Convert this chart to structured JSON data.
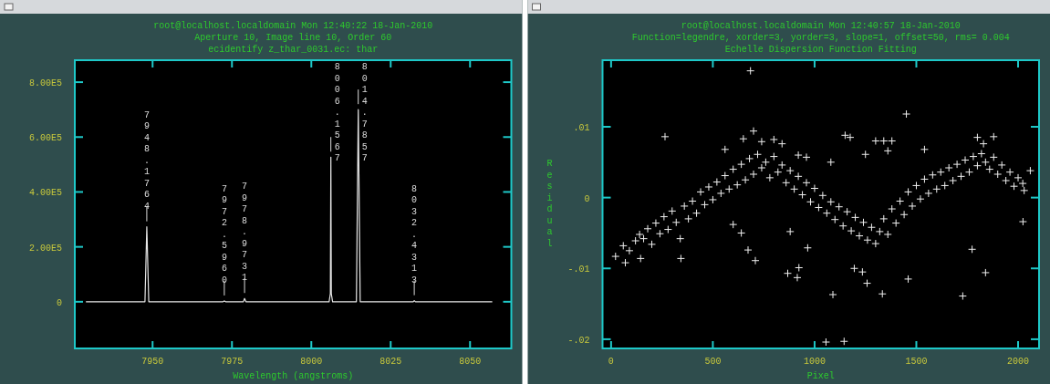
{
  "chart_data": [
    {
      "type": "line",
      "title": "root@localhost.localdomain Mon 12:40:22 18-Jan-2010",
      "subtitle": "Aperture 10, Image line 10, Order 60",
      "xlabel": "Wavelength (angstroms)",
      "color": "#e6e6e6",
      "x": [
        7929,
        7947.6,
        7948.18,
        7948.8,
        7972.2,
        7972.6,
        7973,
        7978.6,
        7978.97,
        7979.4,
        8005.6,
        8006.0,
        8006.16,
        8006.3,
        8006.7,
        8014.2,
        8014.79,
        8015.4,
        8032.1,
        8032.43,
        8032.8,
        8057
      ],
      "values": [
        0,
        0,
        273000,
        0,
        0,
        3000,
        0,
        0,
        12000,
        0,
        0,
        30000,
        527000,
        30000,
        0,
        0,
        700000,
        0,
        0,
        4000,
        0,
        0
      ],
      "xlim": [
        7925.5,
        8063
      ],
      "xticks": [
        7950,
        7975,
        8000,
        8025,
        8050
      ],
      "ylim": [
        -170000,
        880000
      ],
      "yticks": [
        0,
        {
          "value": 200000,
          "label": "2.00E5"
        },
        {
          "value": 400000,
          "label": "4.00E5"
        },
        {
          "value": 600000,
          "label": "6.00E5"
        },
        {
          "value": 800000,
          "label": "8.00E5"
        }
      ],
      "annotations": [
        "ecidentify z_thar_0031.ec: thar",
        {
          "text": "7948.1764",
          "x": 7948.1764,
          "y": 273000
        },
        {
          "text": "7972.5960",
          "x": 7972.596,
          "y": 3000
        },
        {
          "text": "7978.9731",
          "x": 7978.9731,
          "y": 12000
        },
        {
          "text": "8006.1567",
          "x": 8006.1567,
          "y": 527000
        },
        {
          "text": "8014.7857",
          "x": 8014.7857,
          "y": 700000
        },
        {
          "text": "8032.4313",
          "x": 8032.4313,
          "y": 4000
        }
      ]
    },
    {
      "type": "scatter",
      "title": "root@localhost.localdomain Mon 12:40:57 18-Jan-2010",
      "subtitle": "Function=legendre, xorder=3, yorder=3, slope=1, offset=50, rms= 0.004",
      "xlabel": "Pixel",
      "ylabel": "Residual",
      "color": "#f0f0f0",
      "marker": "cross",
      "annotations": [
        "Echelle Dispersion Function Fitting"
      ],
      "x": [
        60,
        90,
        120,
        140,
        160,
        180,
        200,
        220,
        240,
        260,
        280,
        300,
        320,
        340,
        360,
        380,
        400,
        420,
        440,
        460,
        480,
        500,
        520,
        540,
        560,
        580,
        600,
        620,
        640,
        660,
        680,
        700,
        720,
        740,
        760,
        780,
        800,
        820,
        840,
        860,
        880,
        900,
        920,
        940,
        960,
        980,
        1000,
        1020,
        1040,
        1060,
        1080,
        1100,
        1120,
        1140,
        1160,
        1180,
        1200,
        1220,
        1240,
        1260,
        1280,
        1300,
        1320,
        1340,
        1360,
        1380,
        1400,
        1420,
        1440,
        1460,
        1480,
        1500,
        1520,
        1540,
        1560,
        1580,
        1600,
        1620,
        1640,
        1660,
        1680,
        1700,
        1720,
        1740,
        1760,
        1780,
        1800,
        1820,
        1840,
        1860,
        1880,
        1900,
        1920,
        1940,
        1960,
        1980,
        2000,
        2030,
        2060,
        560,
        650,
        700,
        740,
        800,
        840,
        920,
        960,
        1080,
        1150,
        1175,
        1300,
        1340,
        1380,
        1360,
        1250,
        1540,
        1830,
        1880,
        1800,
        600,
        640,
        880,
        685,
        265,
        1451,
        1056,
        1145,
        1090,
        1333,
        1728,
        1460,
        1840,
        868,
        915,
        923,
        1258,
        1195,
        1235,
        22,
        70,
        145,
        343,
        709,
        673,
        966,
        1774,
        2024,
        2023
      ],
      "values": [
        -0.0068,
        -0.0075,
        -0.0061,
        -0.0052,
        -0.0058,
        -0.0044,
        -0.0066,
        -0.0036,
        -0.0051,
        -0.0027,
        -0.0045,
        -0.0019,
        -0.0035,
        -0.0058,
        -0.0012,
        -0.003,
        -0.0005,
        -0.0022,
        0.0008,
        -0.001,
        0.0015,
        -0.0003,
        0.0022,
        0.0006,
        0.0031,
        0.0012,
        0.004,
        0.0018,
        0.0047,
        0.0025,
        0.0055,
        0.0033,
        0.0061,
        0.0042,
        0.005,
        0.0028,
        0.0058,
        0.0036,
        0.0046,
        0.0021,
        0.0038,
        0.0012,
        0.003,
        0.0004,
        0.0021,
        -0.0006,
        0.0013,
        -0.0014,
        0.0003,
        -0.0022,
        -0.0006,
        -0.0031,
        -0.0013,
        -0.004,
        -0.002,
        -0.0047,
        -0.0028,
        -0.0054,
        -0.0035,
        -0.006,
        -0.0042,
        -0.0065,
        -0.0048,
        -0.003,
        -0.0052,
        -0.0016,
        -0.0036,
        -0.0005,
        -0.0024,
        0.0008,
        -0.0012,
        0.0017,
        -0.0002,
        0.0026,
        0.0006,
        0.0032,
        0.0012,
        0.0036,
        0.0017,
        0.0042,
        0.0024,
        0.0047,
        0.003,
        0.0053,
        0.0036,
        0.0058,
        0.0045,
        0.0062,
        0.005,
        0.004,
        0.0057,
        0.0033,
        0.0046,
        0.0024,
        0.0036,
        0.0016,
        0.0028,
        0.001,
        0.0038,
        0.0068,
        0.0083,
        0.0094,
        0.0079,
        0.0082,
        0.0076,
        0.006,
        0.0057,
        0.005,
        0.0088,
        0.0085,
        0.008,
        0.008,
        0.008,
        0.0066,
        0.0061,
        0.0068,
        0.0076,
        0.0086,
        0.0085,
        -0.0038,
        -0.005,
        -0.0048,
        0.0179,
        0.0086,
        0.0118,
        -0.0204,
        -0.0203,
        -0.0137,
        -0.0136,
        -0.0139,
        -0.0115,
        -0.0106,
        -0.0107,
        -0.0113,
        -0.0099,
        -0.0121,
        -0.01,
        -0.0105,
        -0.0083,
        -0.0092,
        -0.0086,
        -0.0086,
        -0.0089,
        -0.0074,
        -0.0071,
        -0.0073,
        -0.0034,
        0.002
      ],
      "xlim": [
        -42,
        2103
      ],
      "xticks": [
        0,
        500,
        1000,
        1500,
        2000
      ],
      "ylim": [
        -0.0213,
        0.0194
      ],
      "yticks": [
        {
          "value": -0.02,
          "label": "-.02"
        },
        {
          "value": -0.01,
          "label": "-.01"
        },
        0,
        {
          "value": 0.01,
          "label": ".01"
        }
      ]
    }
  ]
}
